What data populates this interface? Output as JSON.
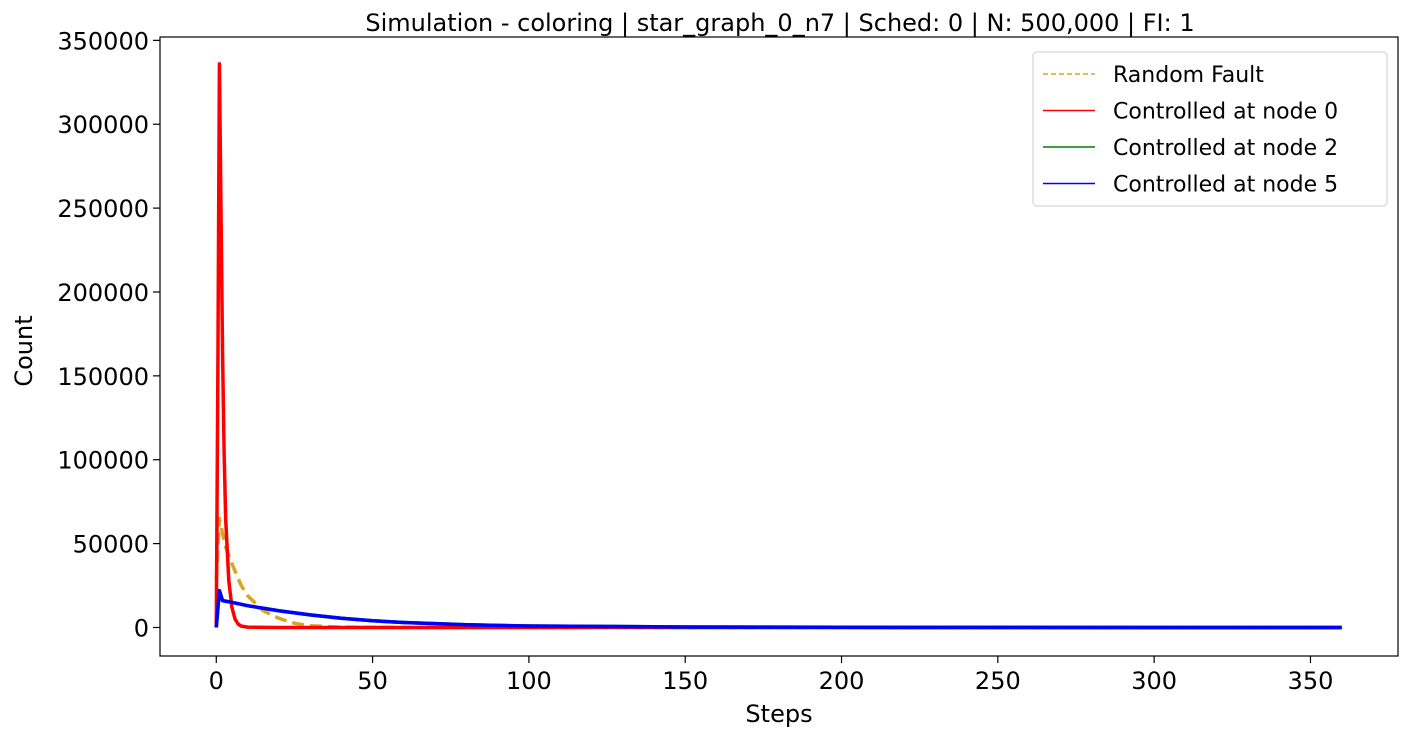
{
  "chart_data": {
    "type": "line",
    "title": "Simulation - coloring | star_graph_0_n7 | Sched: 0 | N: 500,000 | FI: 1",
    "xlabel": "Steps",
    "ylabel": "Count",
    "xlim": [
      -18,
      378
    ],
    "ylim": [
      -17000,
      352000
    ],
    "xticks": [
      0,
      50,
      100,
      150,
      200,
      250,
      300,
      350
    ],
    "yticks": [
      0,
      50000,
      100000,
      150000,
      200000,
      250000,
      300000,
      350000
    ],
    "legend_position": "top-right",
    "grid": false,
    "series": [
      {
        "name": "Random Fault",
        "color": "#DAA520",
        "style": "dashed",
        "x": [
          0,
          1,
          2,
          3,
          5,
          8,
          10,
          15,
          20,
          25,
          30,
          40,
          60,
          100,
          200,
          360
        ],
        "y": [
          28000,
          65000,
          56000,
          48000,
          38000,
          25000,
          19000,
          10000,
          5500,
          2500,
          1000,
          200,
          0,
          0,
          0,
          0
        ]
      },
      {
        "name": "Controlled  at node 0",
        "color": "#FF0000",
        "style": "solid",
        "x": [
          0,
          0.5,
          1,
          1.5,
          2,
          2.5,
          3,
          4,
          5,
          6,
          7,
          8,
          10,
          20,
          100,
          360
        ],
        "y": [
          0,
          150000,
          336000,
          250000,
          165000,
          105000,
          65000,
          28000,
          12000,
          5000,
          2000,
          800,
          200,
          0,
          0,
          0
        ]
      },
      {
        "name": "Controlled  at node 2",
        "color": "#008000",
        "style": "solid",
        "x": [
          0,
          1,
          2,
          5,
          10,
          20,
          30,
          40,
          50,
          60,
          80,
          100,
          150,
          200,
          250,
          300,
          360
        ],
        "y": [
          0,
          22000,
          16000,
          15000,
          13000,
          10000,
          7500,
          5500,
          4000,
          3000,
          1600,
          900,
          300,
          100,
          50,
          20,
          10
        ]
      },
      {
        "name": "Controlled  at node 5",
        "color": "#0000FF",
        "style": "solid",
        "x": [
          0,
          1,
          2,
          5,
          10,
          20,
          30,
          40,
          50,
          60,
          80,
          100,
          150,
          200,
          250,
          300,
          360
        ],
        "y": [
          0,
          22000,
          16000,
          15000,
          13000,
          10000,
          7500,
          5500,
          4000,
          3000,
          1600,
          900,
          300,
          100,
          50,
          20,
          10
        ]
      }
    ]
  }
}
